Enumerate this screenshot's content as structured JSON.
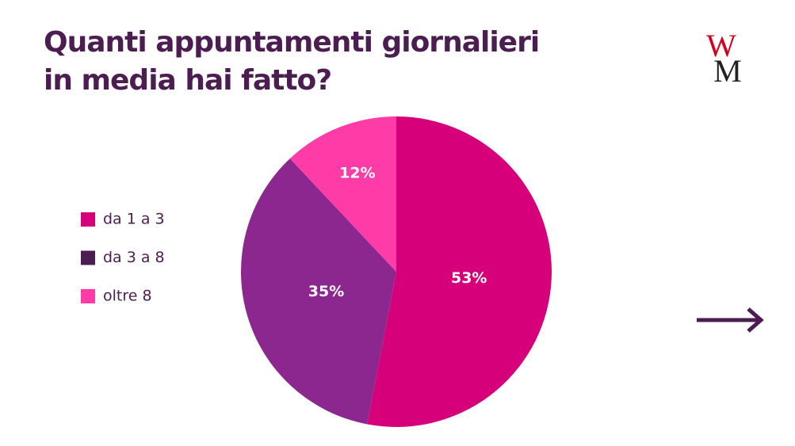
{
  "chart_data": {
    "type": "pie",
    "title": "Quanti appuntamenti giornalieri\nin media hai fatto?",
    "categories": [
      "da 1 a 3",
      "da 3 a 8",
      "oltre 8"
    ],
    "values": [
      53,
      35,
      12
    ],
    "value_labels": [
      "53%",
      "35%",
      "12%"
    ],
    "colors": [
      "#d5007a",
      "#8d2790",
      "#ff3ba8"
    ],
    "legend_colors": [
      "#d5007a",
      "#4b1d50",
      "#ff3ba8"
    ],
    "legend": "left"
  },
  "logo": {
    "top": "W",
    "bottom": "M"
  }
}
